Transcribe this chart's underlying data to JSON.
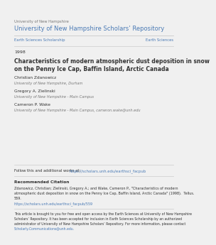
{
  "bg_color": "#f0f0f0",
  "page_bg": "#ffffff",
  "line_color": "#cccccc",
  "blue_link": "#4a7ab5",
  "text_color": "#333333",
  "gray_text": "#777777",
  "univ_label": "University of New Hampshire",
  "repo_title": "University of New Hampshire Scholars’ Repository",
  "left_nav": "Earth Sciences Scholarship",
  "right_nav": "Earth Sciences",
  "year": "1998",
  "paper_title_line1": "Characteristics of modern atmospheric dust deposition in snow",
  "paper_title_line2": "on the Penny Ice Cap, Baffin Island, Arctic Canada",
  "author1_name": "Christian Zdanowicz",
  "author1_affil": "University of New Hampshire, Durham",
  "author2_name": "Gregory A. Zielinski",
  "author2_affil": "University of New Hampshire - Main Campus",
  "author3_name": "Cameron P. Wake",
  "author3_affil": "University of New Hampshire - Main Campus, cameron.wake@unh.edu",
  "follow_prefix": "Follow this and additional works at:  ",
  "follow_link": "https://scholars.unh.edu/earthsci_facpub",
  "rec_cite_label": "Recommended Citation",
  "citation_line1": "Zdanowicz, Christian; Zielinski, Gregory A.; and Wake, Cameron P., \"Characteristics of modern",
  "citation_line2": "atmospheric dust deposition in snow on the Penny Ice Cap, Baffin Island, Arctic Canada\" (1998).  Tellus.",
  "citation_line3": "559.",
  "citation_link": "https://scholars.unh.edu/earthsci_facpub/559",
  "footer_line1": "This article is brought to you for free and open access by the Earth Sciences at University of New Hampshire",
  "footer_line2": "Scholars’ Repository. It has been accepted for inclusion in Earth Sciences Scholarship by an authorized",
  "footer_line3": "administrator of University of New Hampshire Scholars’ Repository. For more information, please contact",
  "footer_link": "Scholarly.Communications@unh.edu."
}
